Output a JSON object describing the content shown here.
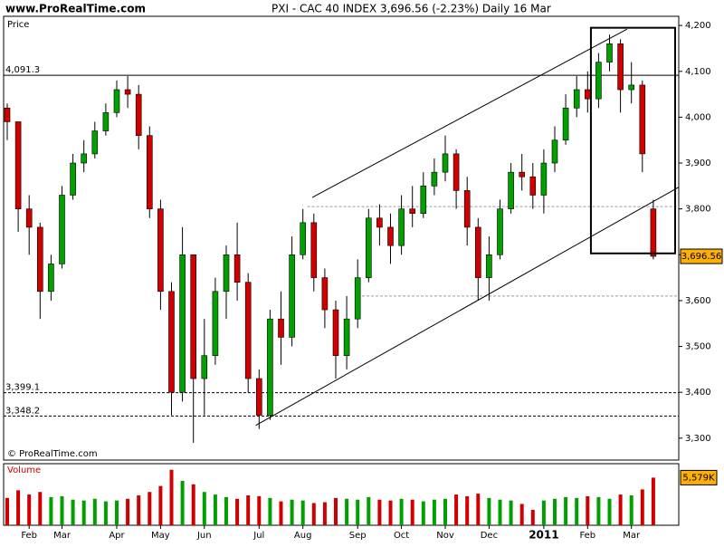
{
  "chart_data": {
    "type": "candlestick",
    "site": "www.ProRealTime.com",
    "title": "PXI - CAC 40 INDEX    3,696.56 (-2.23%)    Daily  16 Mar",
    "price_label": "Price",
    "volume_label": "Volume",
    "copyright": "© ProRealTime.com",
    "categories": [
      null,
      null,
      "Feb",
      null,
      null,
      "Mar",
      null,
      null,
      null,
      null,
      "Apr",
      null,
      null,
      null,
      "May",
      null,
      null,
      null,
      "Jun",
      null,
      null,
      null,
      null,
      "Jul",
      null,
      null,
      null,
      "Aug",
      null,
      null,
      null,
      null,
      "Sep",
      null,
      null,
      null,
      "Oct",
      null,
      null,
      null,
      "Nov",
      null,
      null,
      null,
      "Dec",
      null,
      null,
      null,
      null,
      "2011",
      null,
      null,
      null,
      "Feb",
      null,
      null,
      null,
      "Mar",
      null,
      null
    ],
    "open": [
      4020,
      3990,
      3800,
      3760,
      3620,
      3680,
      3830,
      3900,
      3920,
      3970,
      4010,
      4060,
      4050,
      3960,
      3800,
      3620,
      3400,
      3700,
      3430,
      3480,
      3620,
      3700,
      3640,
      3430,
      3350,
      3560,
      3520,
      3700,
      3770,
      3650,
      3580,
      3480,
      3560,
      3650,
      3780,
      3760,
      3720,
      3800,
      3790,
      3850,
      3880,
      3920,
      3840,
      3760,
      3650,
      3700,
      3800,
      3880,
      3870,
      3830,
      3900,
      3950,
      4020,
      4060,
      4040,
      4120,
      4160,
      4060,
      4070,
      3800
    ],
    "high": [
      4030,
      3990,
      3830,
      3770,
      3700,
      3850,
      3920,
      3950,
      3990,
      4030,
      4080,
      4090,
      4070,
      3980,
      3820,
      3640,
      3760,
      3700,
      3560,
      3650,
      3720,
      3770,
      3660,
      3450,
      3580,
      3620,
      3740,
      3800,
      3790,
      3670,
      3600,
      3610,
      3690,
      3800,
      3810,
      3790,
      3830,
      3850,
      3880,
      3910,
      3960,
      3930,
      3870,
      3780,
      3740,
      3820,
      3900,
      3920,
      3900,
      3930,
      3980,
      4050,
      4090,
      4100,
      4140,
      4180,
      4170,
      4120,
      4080,
      3820
    ],
    "low": [
      3950,
      3750,
      3700,
      3560,
      3600,
      3670,
      3820,
      3880,
      3910,
      3960,
      4000,
      4020,
      3930,
      3780,
      3580,
      3350,
      3380,
      3290,
      3350,
      3460,
      3560,
      3600,
      3400,
      3320,
      3340,
      3460,
      3500,
      3690,
      3620,
      3540,
      3430,
      3450,
      3540,
      3640,
      3720,
      3680,
      3700,
      3760,
      3780,
      3830,
      3860,
      3800,
      3720,
      3600,
      3600,
      3690,
      3790,
      3840,
      3800,
      3790,
      3880,
      3940,
      4000,
      4010,
      4020,
      4100,
      4010,
      4030,
      3880,
      3690
    ],
    "close": [
      3990,
      3800,
      3760,
      3620,
      3680,
      3830,
      3900,
      3920,
      3970,
      4010,
      4060,
      4050,
      3960,
      3800,
      3620,
      3400,
      3700,
      3430,
      3480,
      3620,
      3700,
      3640,
      3430,
      3350,
      3560,
      3520,
      3700,
      3770,
      3650,
      3580,
      3480,
      3560,
      3650,
      3780,
      3760,
      3720,
      3800,
      3790,
      3850,
      3880,
      3920,
      3840,
      3760,
      3650,
      3700,
      3800,
      3880,
      3870,
      3830,
      3900,
      3950,
      4020,
      4060,
      4040,
      4120,
      4160,
      4060,
      4070,
      3920,
      3696.56
    ],
    "up_color": "#00a000",
    "down_color": "#d00000",
    "last_price_label": "3,696.56",
    "ylim": [
      3274,
      4220
    ],
    "yticks": [
      {
        "value": 3300,
        "label": "3,300"
      },
      {
        "value": 3400,
        "label": "3,400"
      },
      {
        "value": 3500,
        "label": "3,500"
      },
      {
        "value": 3600,
        "label": "3,600"
      },
      {
        "value": 3700,
        "label": "3,700"
      },
      {
        "value": 3800,
        "label": "3,800"
      },
      {
        "value": 3900,
        "label": "3,900"
      },
      {
        "value": 4000,
        "label": "4,000"
      },
      {
        "value": 4100,
        "label": "4,100"
      },
      {
        "value": 4200,
        "label": "4,200"
      }
    ],
    "levels": [
      {
        "value": 4091.3,
        "label": "4,091.3",
        "style": "solid"
      },
      {
        "value": 3399.1,
        "label": "3,399.1",
        "style": "dashed"
      },
      {
        "value": 3348.2,
        "label": "3,348.2",
        "style": "dashed"
      }
    ],
    "dashed_levels": [
      {
        "value": 3805,
        "from": 27.4
      },
      {
        "value": 3610,
        "from": 32.4
      }
    ],
    "trendlines": [
      {
        "x": [
          27.85,
          56.6
        ],
        "y": [
          3825,
          4192
        ]
      },
      {
        "x": [
          22.7,
          61.3
        ],
        "y": [
          3328,
          3847
        ]
      }
    ],
    "highlight_box": {
      "x": [
        53.3,
        61
      ],
      "y": [
        3703,
        4195
      ]
    },
    "volume": {
      "values": [
        3200,
        4100,
        3600,
        3900,
        3300,
        3400,
        3000,
        2900,
        3100,
        2800,
        2900,
        3100,
        3500,
        3900,
        4600,
        6500,
        5200,
        4800,
        3900,
        3600,
        3300,
        3100,
        3500,
        3400,
        3200,
        2800,
        3000,
        2900,
        2600,
        2700,
        3200,
        3100,
        3000,
        3300,
        3000,
        2900,
        3100,
        3000,
        2800,
        3000,
        3100,
        3600,
        3400,
        3700,
        3200,
        3000,
        2900,
        2500,
        1800,
        2900,
        3100,
        3300,
        3200,
        3400,
        3300,
        3100,
        3600,
        3500,
        4200,
        5579
      ],
      "last_label": "5,579K",
      "ylim": [
        0,
        7000
      ]
    }
  }
}
